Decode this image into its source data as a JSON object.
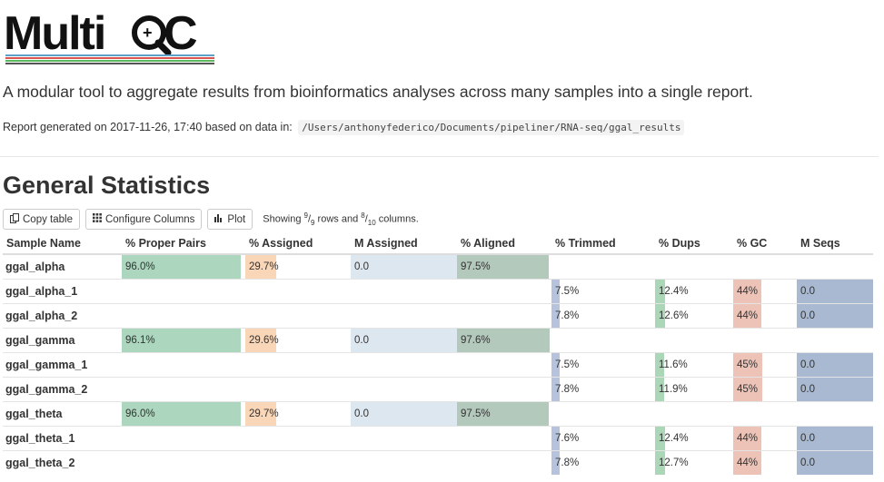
{
  "logo": {
    "text": "MultiQC"
  },
  "tagline": "A modular tool to aggregate results from bioinformatics analyses across many samples into a single report.",
  "report": {
    "generated_text": "Report generated on 2017-11-26, 17:40 based on data in:",
    "data_path": "/Users/anthonyfederico/Documents/pipeliner/RNA-seq/ggal_results"
  },
  "section": {
    "title": "General Statistics"
  },
  "toolbar": {
    "copy_label": "Copy table",
    "configure_label": "Configure Columns",
    "plot_label": "Plot",
    "showing_prefix": "Showing",
    "rows_shown": "9",
    "rows_total": "9",
    "rows_word": "rows and",
    "cols_shown": "8",
    "cols_total": "10",
    "cols_word": "columns."
  },
  "table": {
    "columns": [
      {
        "key": "sample",
        "label": "Sample Name",
        "color": null,
        "max": null
      },
      {
        "key": "proper_pairs",
        "label": "% Proper Pairs",
        "color": "#acd6bd",
        "max": 100
      },
      {
        "key": "assigned",
        "label": "% Assigned",
        "color": "#f9d6b8",
        "max": 100
      },
      {
        "key": "m_assigned",
        "label": "M Assigned",
        "color": "#dde7f0",
        "max": 0.0
      },
      {
        "key": "aligned",
        "label": "% Aligned",
        "color": "#b2c9bc",
        "max": 100
      },
      {
        "key": "trimmed",
        "label": "% Trimmed",
        "color": "#b7c3dc",
        "max": 100
      },
      {
        "key": "dups",
        "label": "% Dups",
        "color": "#abd6b7",
        "max": 100
      },
      {
        "key": "gc",
        "label": "% GC",
        "color": "#ecc3b6",
        "max": 100
      },
      {
        "key": "m_seqs",
        "label": "M Seqs",
        "color": "#a8b9d1",
        "max": 0.0
      }
    ],
    "rows": [
      {
        "sample": "ggal_alpha",
        "proper_pairs": "96.0%",
        "assigned": "29.7%",
        "m_assigned": "0.0",
        "aligned": "97.5%",
        "trimmed": "",
        "dups": "",
        "gc": "",
        "m_seqs": ""
      },
      {
        "sample": "ggal_alpha_1",
        "proper_pairs": "",
        "assigned": "",
        "m_assigned": "",
        "aligned": "",
        "trimmed": "7.5%",
        "dups": "12.4%",
        "gc": "44%",
        "m_seqs": "0.0"
      },
      {
        "sample": "ggal_alpha_2",
        "proper_pairs": "",
        "assigned": "",
        "m_assigned": "",
        "aligned": "",
        "trimmed": "7.8%",
        "dups": "12.6%",
        "gc": "44%",
        "m_seqs": "0.0"
      },
      {
        "sample": "ggal_gamma",
        "proper_pairs": "96.1%",
        "assigned": "29.6%",
        "m_assigned": "0.0",
        "aligned": "97.6%",
        "trimmed": "",
        "dups": "",
        "gc": "",
        "m_seqs": ""
      },
      {
        "sample": "ggal_gamma_1",
        "proper_pairs": "",
        "assigned": "",
        "m_assigned": "",
        "aligned": "",
        "trimmed": "7.5%",
        "dups": "11.6%",
        "gc": "45%",
        "m_seqs": "0.0"
      },
      {
        "sample": "ggal_gamma_2",
        "proper_pairs": "",
        "assigned": "",
        "m_assigned": "",
        "aligned": "",
        "trimmed": "7.8%",
        "dups": "11.9%",
        "gc": "45%",
        "m_seqs": "0.0"
      },
      {
        "sample": "ggal_theta",
        "proper_pairs": "96.0%",
        "assigned": "29.7%",
        "m_assigned": "0.0",
        "aligned": "97.5%",
        "trimmed": "",
        "dups": "",
        "gc": "",
        "m_seqs": ""
      },
      {
        "sample": "ggal_theta_1",
        "proper_pairs": "",
        "assigned": "",
        "m_assigned": "",
        "aligned": "",
        "trimmed": "7.6%",
        "dups": "12.4%",
        "gc": "44%",
        "m_seqs": "0.0"
      },
      {
        "sample": "ggal_theta_2",
        "proper_pairs": "",
        "assigned": "",
        "m_assigned": "",
        "aligned": "",
        "trimmed": "7.8%",
        "dups": "12.7%",
        "gc": "44%",
        "m_seqs": "0.0"
      }
    ]
  }
}
